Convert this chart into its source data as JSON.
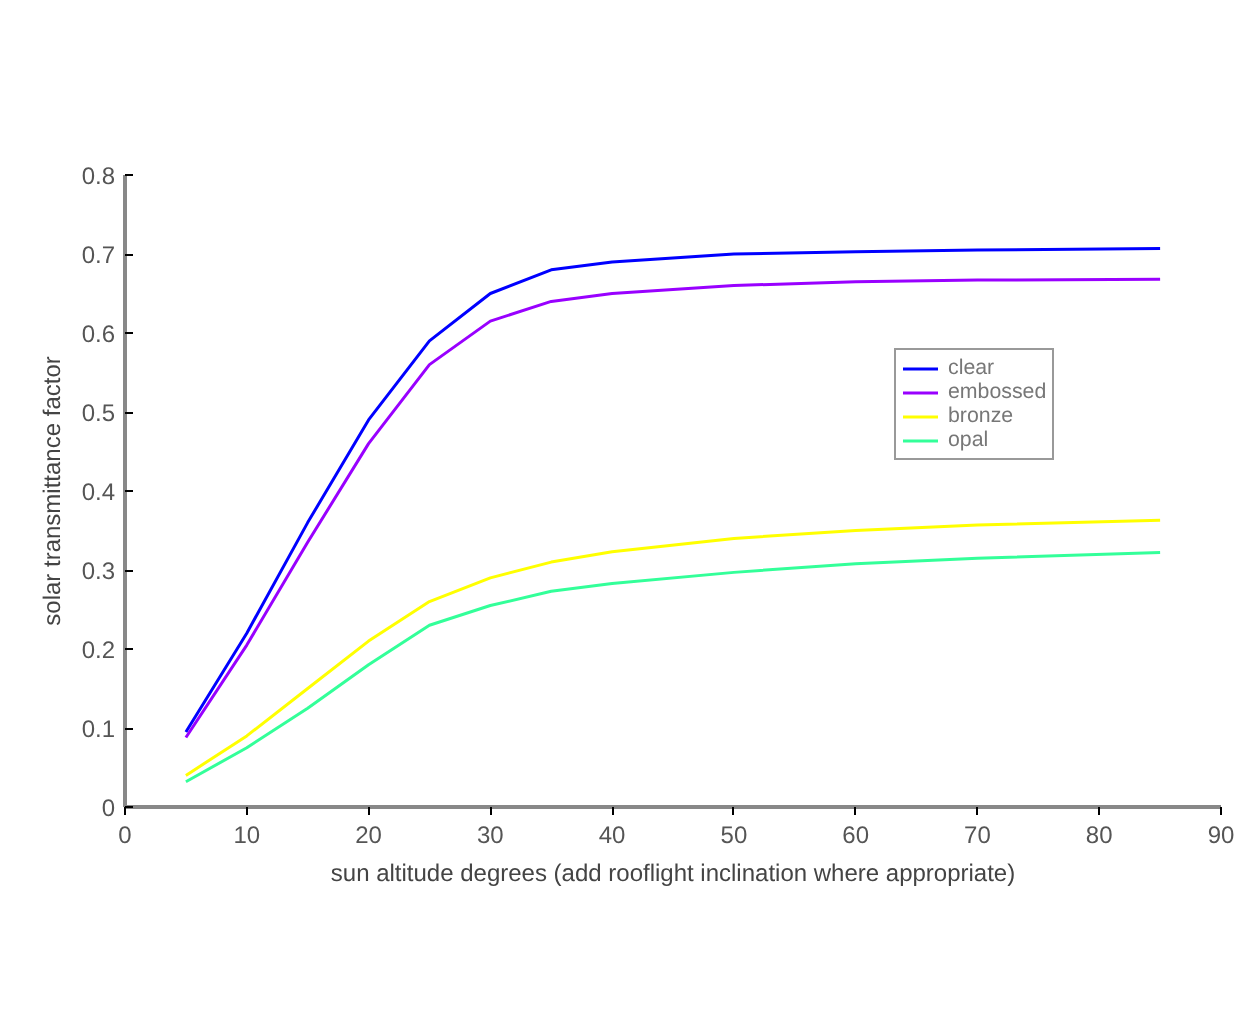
{
  "chart_data": {
    "type": "line",
    "xlabel": "sun altitude degrees (add rooflight inclination where appropriate)",
    "ylabel": "solar transmittance factor",
    "x": [
      5,
      10,
      15,
      20,
      25,
      30,
      35,
      40,
      50,
      60,
      70,
      85
    ],
    "series": [
      {
        "name": "clear",
        "color": "#0000ff",
        "values": [
          0.095,
          0.22,
          0.36,
          0.49,
          0.59,
          0.65,
          0.68,
          0.69,
          0.7,
          0.703,
          0.705,
          0.707
        ]
      },
      {
        "name": "embossed",
        "color": "#9900ff",
        "values": [
          0.088,
          0.205,
          0.335,
          0.46,
          0.56,
          0.615,
          0.64,
          0.65,
          0.66,
          0.665,
          0.667,
          0.668
        ]
      },
      {
        "name": "bronze",
        "color": "#ffff00",
        "values": [
          0.04,
          0.09,
          0.15,
          0.21,
          0.26,
          0.29,
          0.31,
          0.323,
          0.34,
          0.35,
          0.357,
          0.363
        ]
      },
      {
        "name": "opal",
        "color": "#33ff99",
        "values": [
          0.032,
          0.075,
          0.125,
          0.18,
          0.23,
          0.255,
          0.273,
          0.283,
          0.297,
          0.308,
          0.315,
          0.322
        ]
      }
    ],
    "xlim": [
      0,
      90
    ],
    "xticks": [
      0,
      10,
      20,
      30,
      40,
      50,
      60,
      70,
      80,
      90
    ],
    "ylim": [
      0,
      0.8
    ],
    "yticks": [
      0,
      0.1,
      0.2,
      0.3,
      0.4,
      0.5,
      0.6,
      0.7,
      0.8
    ],
    "grid": false,
    "legend": "right",
    "marker": "none",
    "line_style": "solid"
  }
}
